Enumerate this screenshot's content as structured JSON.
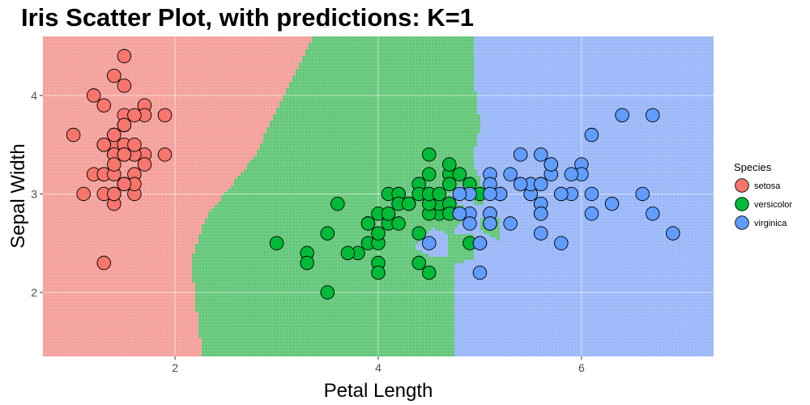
{
  "chart_data": {
    "type": "scatter",
    "title": "Iris Scatter Plot, with predictions: K=1",
    "xlabel": "Petal Length",
    "ylabel": "Sepal Width",
    "xlim": [
      0.7,
      7.3
    ],
    "ylim": [
      1.35,
      4.6
    ],
    "x_ticks": [
      2,
      4,
      6
    ],
    "y_ticks": [
      2,
      3,
      4
    ],
    "grid": true,
    "legend": {
      "title": "Species",
      "position": "right",
      "items": [
        "setosa",
        "versicolor",
        "virginica"
      ]
    },
    "colors": {
      "setosa": "#f8766d",
      "versicolor": "#00ba38",
      "virginica": "#619cff",
      "setosa_region": "#f4a09a",
      "versicolor_region": "#63c779",
      "virginica_region": "#9ab7f8"
    },
    "series": [
      {
        "name": "setosa",
        "points": [
          [
            1.4,
            3.5
          ],
          [
            1.4,
            3.0
          ],
          [
            1.3,
            3.2
          ],
          [
            1.5,
            3.1
          ],
          [
            1.4,
            3.6
          ],
          [
            1.7,
            3.9
          ],
          [
            1.4,
            3.4
          ],
          [
            1.5,
            3.4
          ],
          [
            1.4,
            2.9
          ],
          [
            1.5,
            3.1
          ],
          [
            1.5,
            3.7
          ],
          [
            1.6,
            3.4
          ],
          [
            1.4,
            3.0
          ],
          [
            1.1,
            3.0
          ],
          [
            1.2,
            4.0
          ],
          [
            1.5,
            4.4
          ],
          [
            1.3,
            3.9
          ],
          [
            1.4,
            3.5
          ],
          [
            1.7,
            3.8
          ],
          [
            1.5,
            3.8
          ],
          [
            1.7,
            3.4
          ],
          [
            1.5,
            3.7
          ],
          [
            1.0,
            3.6
          ],
          [
            1.7,
            3.3
          ],
          [
            1.9,
            3.4
          ],
          [
            1.6,
            3.0
          ],
          [
            1.6,
            3.4
          ],
          [
            1.5,
            3.5
          ],
          [
            1.4,
            3.4
          ],
          [
            1.6,
            3.2
          ],
          [
            1.6,
            3.1
          ],
          [
            1.5,
            3.4
          ],
          [
            1.5,
            4.1
          ],
          [
            1.4,
            4.2
          ],
          [
            1.5,
            3.1
          ],
          [
            1.2,
            3.2
          ],
          [
            1.3,
            3.5
          ],
          [
            1.4,
            3.6
          ],
          [
            1.3,
            3.0
          ],
          [
            1.5,
            3.4
          ],
          [
            1.3,
            3.5
          ],
          [
            1.3,
            2.3
          ],
          [
            1.3,
            3.2
          ],
          [
            1.6,
            3.5
          ],
          [
            1.9,
            3.8
          ],
          [
            1.4,
            3.0
          ],
          [
            1.6,
            3.8
          ],
          [
            1.4,
            3.2
          ],
          [
            1.5,
            3.7
          ],
          [
            1.4,
            3.3
          ]
        ]
      },
      {
        "name": "versicolor",
        "points": [
          [
            4.7,
            3.2
          ],
          [
            4.5,
            3.2
          ],
          [
            4.9,
            3.1
          ],
          [
            4.0,
            2.3
          ],
          [
            4.6,
            2.8
          ],
          [
            4.5,
            2.8
          ],
          [
            4.7,
            3.3
          ],
          [
            3.3,
            2.4
          ],
          [
            4.6,
            2.9
          ],
          [
            3.9,
            2.7
          ],
          [
            3.5,
            2.0
          ],
          [
            4.2,
            3.0
          ],
          [
            4.0,
            2.2
          ],
          [
            4.7,
            2.9
          ],
          [
            3.6,
            2.9
          ],
          [
            4.4,
            3.1
          ],
          [
            4.5,
            3.0
          ],
          [
            4.1,
            2.7
          ],
          [
            4.5,
            2.2
          ],
          [
            3.9,
            2.5
          ],
          [
            4.8,
            3.2
          ],
          [
            4.0,
            2.8
          ],
          [
            4.9,
            2.5
          ],
          [
            4.7,
            2.8
          ],
          [
            4.3,
            2.9
          ],
          [
            4.4,
            3.0
          ],
          [
            4.8,
            2.8
          ],
          [
            5.0,
            3.0
          ],
          [
            4.5,
            2.9
          ],
          [
            3.5,
            2.6
          ],
          [
            3.8,
            2.4
          ],
          [
            3.7,
            2.4
          ],
          [
            3.9,
            2.7
          ],
          [
            5.1,
            2.7
          ],
          [
            4.5,
            3.0
          ],
          [
            4.5,
            3.4
          ],
          [
            4.7,
            3.1
          ],
          [
            4.4,
            2.3
          ],
          [
            4.1,
            3.0
          ],
          [
            4.0,
            2.5
          ],
          [
            4.4,
            2.6
          ],
          [
            4.6,
            3.0
          ],
          [
            4.0,
            2.6
          ],
          [
            3.3,
            2.3
          ],
          [
            4.2,
            2.7
          ],
          [
            4.2,
            3.0
          ],
          [
            4.2,
            2.9
          ],
          [
            4.3,
            2.9
          ],
          [
            3.0,
            2.5
          ],
          [
            4.1,
            2.8
          ]
        ]
      },
      {
        "name": "virginica",
        "points": [
          [
            6.0,
            3.3
          ],
          [
            5.1,
            2.7
          ],
          [
            5.9,
            3.0
          ],
          [
            5.6,
            2.9
          ],
          [
            5.8,
            3.0
          ],
          [
            6.6,
            3.0
          ],
          [
            4.5,
            2.5
          ],
          [
            6.3,
            2.9
          ],
          [
            5.8,
            2.5
          ],
          [
            6.1,
            3.6
          ],
          [
            5.1,
            3.2
          ],
          [
            5.3,
            2.7
          ],
          [
            5.5,
            3.0
          ],
          [
            5.0,
            2.5
          ],
          [
            5.1,
            2.8
          ],
          [
            5.3,
            3.2
          ],
          [
            5.5,
            3.0
          ],
          [
            6.7,
            3.8
          ],
          [
            6.9,
            2.6
          ],
          [
            5.0,
            2.2
          ],
          [
            5.7,
            3.2
          ],
          [
            4.9,
            2.8
          ],
          [
            6.7,
            2.8
          ],
          [
            4.9,
            2.7
          ],
          [
            5.7,
            3.3
          ],
          [
            6.0,
            3.2
          ],
          [
            4.8,
            2.8
          ],
          [
            4.9,
            3.0
          ],
          [
            5.6,
            2.8
          ],
          [
            5.8,
            3.0
          ],
          [
            6.1,
            2.8
          ],
          [
            6.4,
            3.8
          ],
          [
            5.6,
            2.8
          ],
          [
            5.1,
            2.8
          ],
          [
            5.6,
            2.6
          ],
          [
            6.1,
            3.0
          ],
          [
            5.6,
            3.4
          ],
          [
            5.5,
            3.1
          ],
          [
            4.8,
            3.0
          ],
          [
            5.4,
            3.1
          ],
          [
            5.6,
            3.1
          ],
          [
            5.1,
            3.1
          ],
          [
            5.1,
            2.7
          ],
          [
            5.9,
            3.2
          ],
          [
            5.7,
            3.3
          ],
          [
            5.2,
            3.0
          ],
          [
            5.0,
            2.5
          ],
          [
            5.2,
            3.0
          ],
          [
            5.4,
            3.4
          ],
          [
            5.1,
            3.0
          ]
        ]
      }
    ]
  }
}
